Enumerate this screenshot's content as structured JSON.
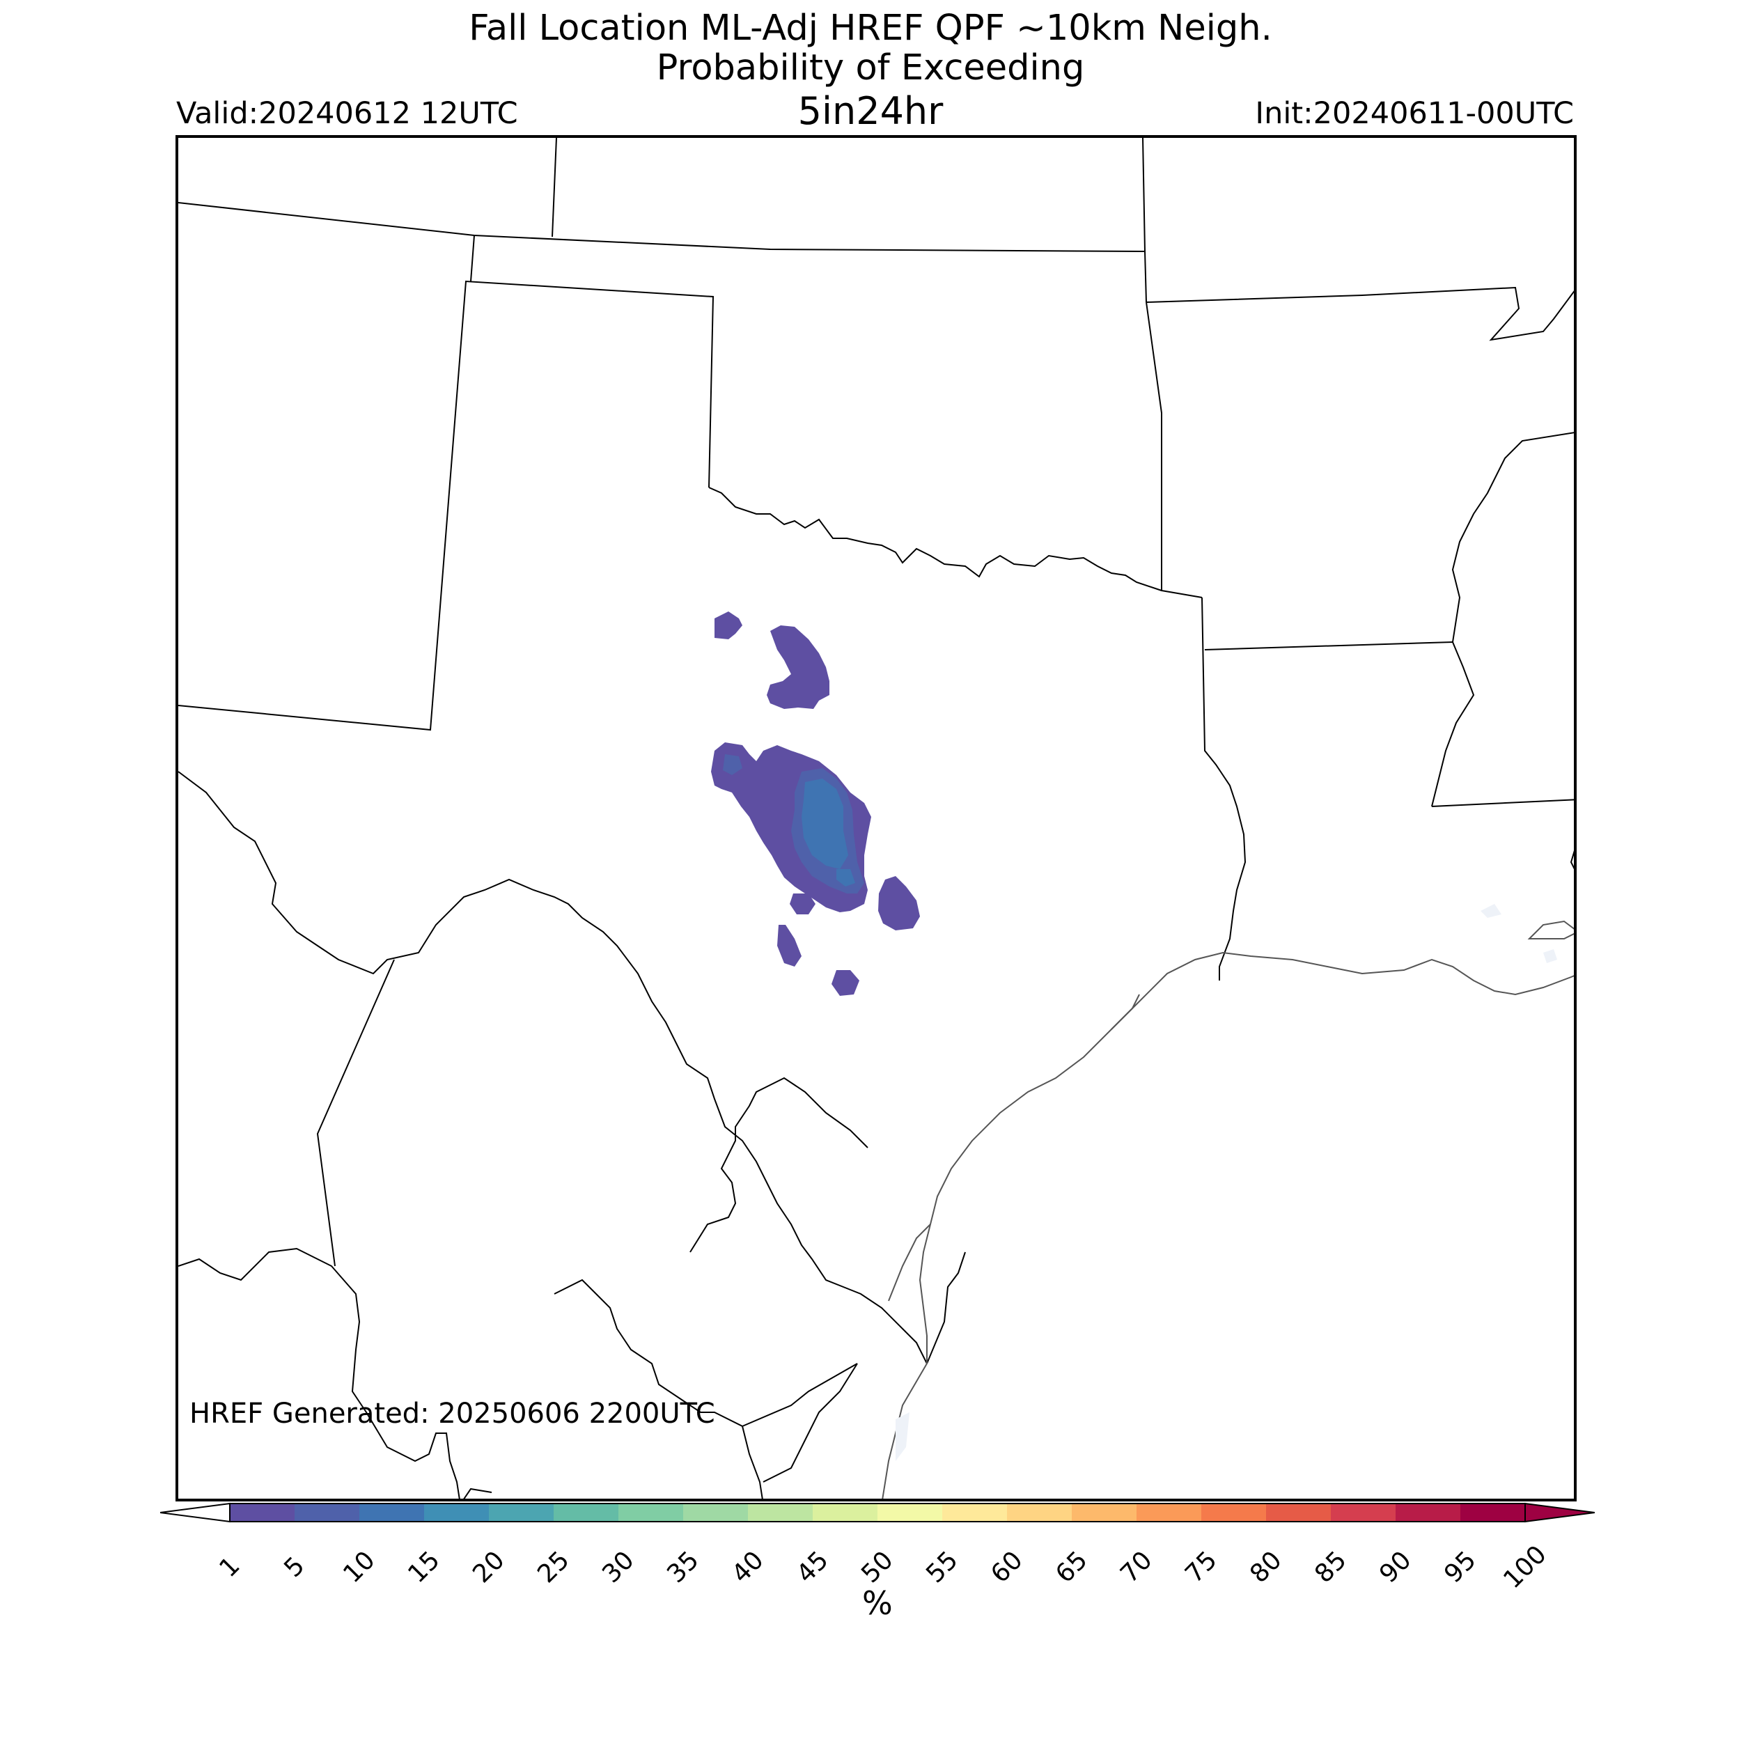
{
  "title": {
    "line1": "Fall Location ML-Adj HREF QPF ~10km Neigh.",
    "line2": "Probability of Exceeding",
    "line3": "5in24hr"
  },
  "valid_label": "Valid:20240612 12UTC",
  "init_label": "Init:20240611-00UTC",
  "generated_label": "HREF Generated: 20250606 2200UTC",
  "colorbar": {
    "unit": "%",
    "ticks": [
      "1",
      "5",
      "10",
      "15",
      "20",
      "25",
      "30",
      "35",
      "40",
      "45",
      "50",
      "55",
      "60",
      "65",
      "70",
      "75",
      "80",
      "85",
      "90",
      "95",
      "100"
    ],
    "colors": [
      "#5e4fa2",
      "#4f61aa",
      "#3f74b2",
      "#3f8fb5",
      "#4ca5b1",
      "#64bca6",
      "#80cda4",
      "#9fd9a4",
      "#bde5a1",
      "#dbf09e",
      "#f3f9a7",
      "#fee99a",
      "#fed483",
      "#fdb96b",
      "#fb9a58",
      "#f57a4b",
      "#e65b47",
      "#d53e4f",
      "#b81c48",
      "#9e0142"
    ],
    "under_color": "#ffffff",
    "over_color": "#9e0142"
  },
  "probability_areas": [
    {
      "level": "1-5%",
      "color": "#5e4fa2"
    },
    {
      "level": "5-10%",
      "color": "#4f61aa"
    },
    {
      "level": "10-15%",
      "color": "#3f74b2"
    }
  ]
}
